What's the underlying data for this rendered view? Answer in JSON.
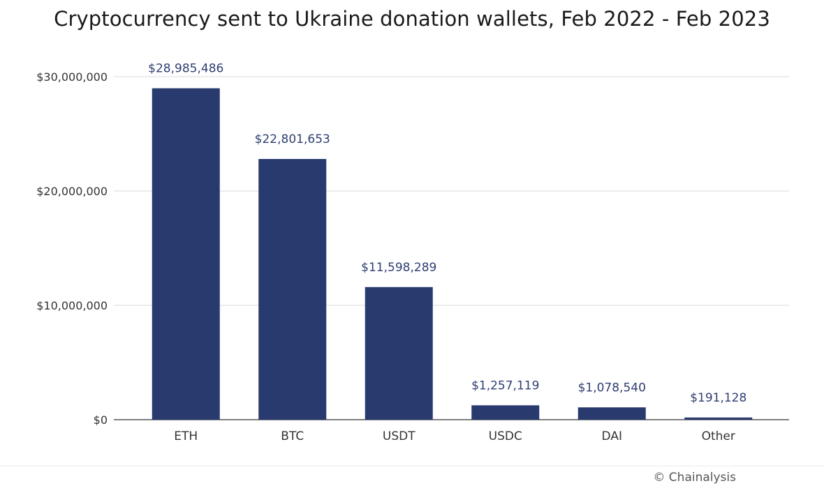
{
  "chart_data": {
    "type": "bar",
    "title": "Cryptocurrency sent to Ukraine donation wallets, Feb 2022 - Feb 2023",
    "categories": [
      "ETH",
      "BTC",
      "USDT",
      "USDC",
      "DAI",
      "Other"
    ],
    "values": [
      28985486,
      22801653,
      11598289,
      1257119,
      1078540,
      191128
    ],
    "value_labels": [
      "$28,985,486",
      "$22,801,653",
      "$11,598,289",
      "$1,257,119",
      "$1,078,540",
      "$191,128"
    ],
    "y_ticks": [
      0,
      10000000,
      20000000,
      30000000
    ],
    "y_tick_labels": [
      "$0",
      "$10,000,000",
      "$20,000,000",
      "$30,000,000"
    ],
    "ylim": [
      0,
      30000000
    ],
    "grid": true,
    "xlabel": "",
    "ylabel": "",
    "colors": {
      "bar": "#283a6e",
      "value_label": "#2f3e72",
      "grid": "#d9d9d9",
      "axis_text": "#333333"
    }
  },
  "credit": "© Chainalysis"
}
